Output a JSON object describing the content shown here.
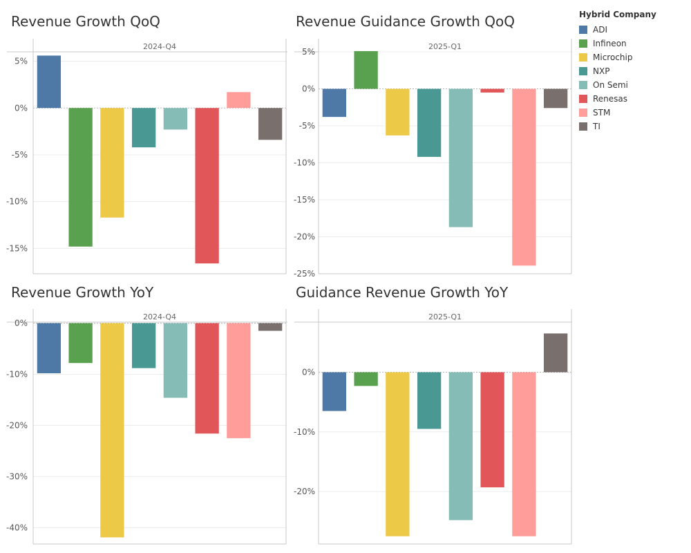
{
  "legend": {
    "title": "Hybrid Company",
    "items": [
      {
        "label": "ADI",
        "color": "#4e79a7"
      },
      {
        "label": "Infineon",
        "color": "#59a14f"
      },
      {
        "label": "Microchip",
        "color": "#edc948"
      },
      {
        "label": "NXP",
        "color": "#499894"
      },
      {
        "label": "On Semi",
        "color": "#86bcb6"
      },
      {
        "label": "Renesas",
        "color": "#e15759"
      },
      {
        "label": "STM",
        "color": "#ff9d9a"
      },
      {
        "label": "TI",
        "color": "#79706e"
      }
    ]
  },
  "chart_data": [
    {
      "type": "bar",
      "title": "Revenue Growth QoQ",
      "header": "2024-Q4",
      "categories": [
        "ADI",
        "Infineon",
        "Microchip",
        "NXP",
        "On Semi",
        "Renesas",
        "STM",
        "TI"
      ],
      "values": [
        5.6,
        -14.8,
        -11.7,
        -4.2,
        -2.3,
        -16.6,
        1.7,
        -3.4
      ],
      "ylim": [
        -17.7,
        6.0
      ],
      "ticks": [
        5,
        0,
        -5,
        -10,
        -15
      ],
      "tick_labels": [
        "5%",
        "0%",
        "-5%",
        "-10%",
        "-15%"
      ]
    },
    {
      "type": "bar",
      "title": "Revenue Guidance Growth QoQ",
      "header": "2025-Q1",
      "categories": [
        "ADI",
        "Infineon",
        "Microchip",
        "NXP",
        "On Semi",
        "Renesas",
        "STM",
        "TI"
      ],
      "values": [
        -3.8,
        5.1,
        -6.3,
        -9.2,
        -18.7,
        -0.5,
        -23.9,
        -2.6
      ],
      "ylim": [
        -25.0,
        5.0
      ],
      "ticks": [
        5,
        0,
        -5,
        -10,
        -15,
        -20,
        -25
      ],
      "tick_labels": [
        "5%",
        "0%",
        "-5%",
        "-10%",
        "-15%",
        "-20%",
        "-25%"
      ]
    },
    {
      "type": "bar",
      "title": "Revenue Growth YoY",
      "header": "2024-Q4",
      "categories": [
        "ADI",
        "Infineon",
        "Microchip",
        "NXP",
        "On Semi",
        "Renesas",
        "STM",
        "TI"
      ],
      "values": [
        -9.8,
        -7.8,
        -41.9,
        -8.8,
        -14.6,
        -21.6,
        -22.5,
        -1.5
      ],
      "ylim": [
        -43.2,
        0.2
      ],
      "ticks": [
        0,
        -10,
        -20,
        -30,
        -40
      ],
      "tick_labels": [
        "0%",
        "-10%",
        "-20%",
        "-30%",
        "-40%"
      ]
    },
    {
      "type": "bar",
      "title": "Guidance Revenue Growth YoY",
      "header": "2025-Q1",
      "categories": [
        "ADI",
        "Infineon",
        "Microchip",
        "NXP",
        "On Semi",
        "Renesas",
        "STM",
        "TI"
      ],
      "values": [
        -6.5,
        -2.3,
        -27.5,
        -9.5,
        -24.8,
        -19.3,
        -27.5,
        6.5
      ],
      "ylim": [
        -28.8,
        8.4
      ],
      "ticks": [
        0,
        -10,
        -20
      ],
      "tick_labels": [
        "0%",
        "-10%",
        "-20%"
      ]
    }
  ]
}
